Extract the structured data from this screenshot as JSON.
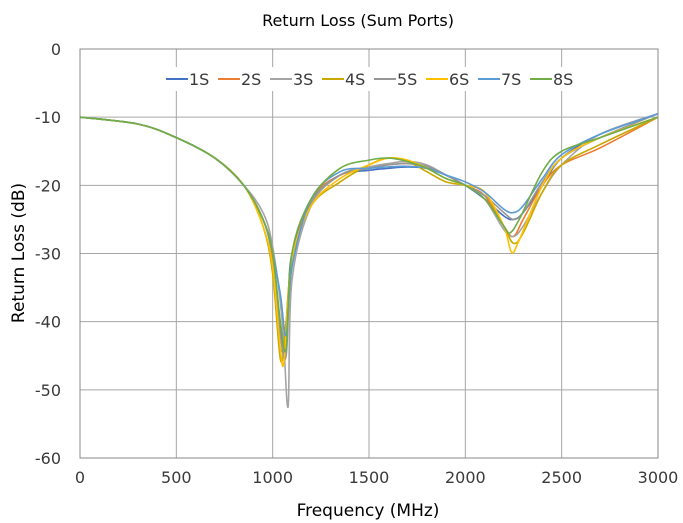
{
  "chart_data": {
    "type": "line",
    "title": "Return Loss (Sum Ports)",
    "xlabel": "Frequency (MHz)",
    "ylabel": "Return Loss (dB)",
    "xlim": [
      0,
      3000
    ],
    "ylim": [
      -60,
      0
    ],
    "xticks": [
      0,
      500,
      1000,
      1500,
      2000,
      2500,
      3000
    ],
    "yticks": [
      0,
      -10,
      -20,
      -30,
      -40,
      -50,
      -60
    ],
    "grid": true,
    "legend": "top",
    "series": [
      {
        "name": "1S",
        "color": "#4472c4",
        "x": [
          0,
          300,
          500,
          700,
          850,
          950,
          1000,
          1030,
          1060,
          1080,
          1100,
          1200,
          1350,
          1500,
          1600,
          1700,
          1800,
          1900,
          2000,
          2100,
          2200,
          2250,
          2300,
          2400,
          2500,
          2700,
          3000
        ],
        "y": [
          -10,
          -11,
          -13,
          -16,
          -20,
          -25,
          -30,
          -38,
          -44,
          -38,
          -30,
          -22,
          -18.5,
          -17.8,
          -17.5,
          -17.3,
          -17.5,
          -18.5,
          -20,
          -22,
          -24.5,
          -25,
          -24,
          -20,
          -16,
          -12.5,
          -9.5
        ]
      },
      {
        "name": "2S",
        "color": "#ed7d31",
        "x": [
          0,
          300,
          500,
          700,
          850,
          950,
          1000,
          1040,
          1070,
          1100,
          1200,
          1350,
          1500,
          1600,
          1700,
          1800,
          1900,
          2000,
          2100,
          2200,
          2250,
          2300,
          2400,
          2500,
          2700,
          3000
        ],
        "y": [
          -10,
          -11,
          -13,
          -16,
          -20,
          -25,
          -31,
          -44,
          -40,
          -31,
          -22,
          -18.5,
          -17.5,
          -17,
          -16.8,
          -17.2,
          -18.5,
          -20,
          -21.5,
          -26,
          -27.5,
          -25,
          -20,
          -17,
          -14.5,
          -10
        ]
      },
      {
        "name": "3S",
        "color": "#a5a5a5",
        "x": [
          0,
          300,
          500,
          700,
          850,
          950,
          1000,
          1050,
          1080,
          1100,
          1200,
          1350,
          1500,
          1600,
          1700,
          1800,
          1900,
          2000,
          2100,
          2200,
          2250,
          2300,
          2400,
          2500,
          2700,
          3000
        ],
        "y": [
          -10,
          -11,
          -13,
          -16,
          -20,
          -24,
          -29,
          -40,
          -52.5,
          -34,
          -23,
          -18.5,
          -17.3,
          -16.8,
          -16.5,
          -17,
          -18.5,
          -20,
          -22,
          -26.5,
          -27.5,
          -26,
          -21,
          -17,
          -12.5,
          -9.5
        ]
      },
      {
        "name": "4S",
        "color": "#c9a800",
        "x": [
          0,
          300,
          500,
          700,
          850,
          950,
          1000,
          1040,
          1065,
          1100,
          1200,
          1350,
          1500,
          1600,
          1700,
          1800,
          1900,
          2000,
          2100,
          2200,
          2250,
          2300,
          2400,
          2500,
          2700,
          3000
        ],
        "y": [
          -10,
          -11,
          -13,
          -16,
          -20,
          -26,
          -33,
          -45.5,
          -42,
          -31,
          -23,
          -19.5,
          -17,
          -16,
          -16.5,
          -18,
          -19.5,
          -20,
          -21,
          -26,
          -28.5,
          -27,
          -21,
          -17,
          -14,
          -10
        ]
      },
      {
        "name": "5S",
        "color": "#969696",
        "x": [
          0,
          300,
          500,
          700,
          850,
          950,
          1000,
          1040,
          1070,
          1100,
          1200,
          1350,
          1500,
          1600,
          1700,
          1800,
          1900,
          2000,
          2100,
          2200,
          2250,
          2300,
          2400,
          2500,
          2700,
          3000
        ],
        "y": [
          -10,
          -11,
          -13,
          -16,
          -20,
          -25,
          -30,
          -42,
          -45,
          -32,
          -22.5,
          -18.5,
          -17.5,
          -17,
          -16.8,
          -17.2,
          -18.5,
          -20,
          -21.5,
          -24,
          -25,
          -24,
          -19.5,
          -16,
          -13,
          -9.5
        ]
      },
      {
        "name": "6S",
        "color": "#ffc000",
        "x": [
          0,
          300,
          500,
          700,
          850,
          950,
          1000,
          1040,
          1060,
          1100,
          1200,
          1350,
          1500,
          1600,
          1700,
          1800,
          1900,
          2000,
          2100,
          2200,
          2240,
          2280,
          2400,
          2500,
          2700,
          3000
        ],
        "y": [
          -10,
          -11,
          -13,
          -16,
          -20,
          -26,
          -32,
          -44,
          -45.5,
          -31,
          -23,
          -19,
          -17,
          -16,
          -16.3,
          -17.5,
          -19,
          -20,
          -21,
          -26,
          -29.8,
          -28,
          -20,
          -16,
          -13,
          -10
        ]
      },
      {
        "name": "7S",
        "color": "#5b9bd5",
        "x": [
          0,
          300,
          500,
          700,
          850,
          950,
          1000,
          1040,
          1070,
          1100,
          1200,
          1350,
          1500,
          1600,
          1700,
          1800,
          1900,
          2000,
          2100,
          2200,
          2250,
          2300,
          2400,
          2500,
          2700,
          3000
        ],
        "y": [
          -10,
          -11,
          -13,
          -16,
          -20,
          -25,
          -30,
          -36,
          -42,
          -32,
          -22,
          -18,
          -17.5,
          -17.3,
          -17.2,
          -17.5,
          -18.5,
          -19.5,
          -21,
          -23.5,
          -24,
          -23,
          -19,
          -15.5,
          -12.5,
          -9.5
        ]
      },
      {
        "name": "8S",
        "color": "#70ad47",
        "x": [
          0,
          300,
          500,
          700,
          850,
          950,
          1000,
          1040,
          1070,
          1100,
          1200,
          1350,
          1500,
          1600,
          1700,
          1800,
          1900,
          2000,
          2100,
          2200,
          2230,
          2280,
          2400,
          2500,
          2700,
          3000
        ],
        "y": [
          -10,
          -11,
          -13,
          -16,
          -20,
          -25,
          -30,
          -40,
          -44,
          -30,
          -22,
          -17.5,
          -16.3,
          -16,
          -16.5,
          -17.5,
          -19,
          -20,
          -22,
          -26,
          -27,
          -25,
          -18,
          -15,
          -13,
          -10
        ]
      }
    ]
  }
}
